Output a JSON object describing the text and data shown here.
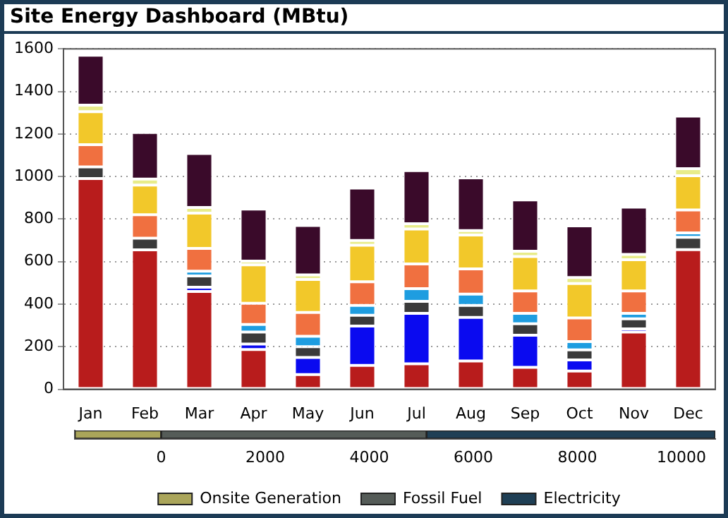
{
  "chart_data": [
    {
      "type": "bar",
      "title": "Site Energy Dashboard (MBtu)",
      "stacked": true,
      "grid": "y",
      "legend": false,
      "categories": [
        "Jan",
        "Feb",
        "Mar",
        "Apr",
        "May",
        "Jun",
        "Jul",
        "Aug",
        "Sep",
        "Oct",
        "Nov",
        "Dec"
      ],
      "ylim": [
        0,
        1600
      ],
      "yticks": [
        0,
        200,
        400,
        600,
        800,
        1000,
        1200,
        1400,
        1600
      ],
      "series": [
        {
          "color": "#b81c1c",
          "values": [
            990,
            655,
            460,
            187,
            69,
            112,
            120,
            133,
            103,
            86,
            269,
            656
          ]
        },
        {
          "color": "#0a0af0",
          "values": [
            0,
            0,
            20,
            26,
            81,
            185,
            237,
            205,
            151,
            52,
            15,
            0
          ]
        },
        {
          "color": "#3a3a3a",
          "values": [
            55,
            55,
            53,
            56,
            50,
            51,
            56,
            56,
            54,
            47,
            47,
            58
          ]
        },
        {
          "color": "#1e9de0",
          "values": [
            0,
            0,
            22,
            36,
            49,
            46,
            60,
            53,
            49,
            39,
            26,
            21
          ]
        },
        {
          "color": "#f07040",
          "values": [
            105,
            110,
            107,
            99,
            112,
            111,
            116,
            119,
            105,
            111,
            105,
            108
          ]
        },
        {
          "color": "#f2c82a",
          "values": [
            155,
            140,
            166,
            181,
            155,
            172,
            164,
            159,
            162,
            162,
            147,
            161
          ]
        },
        {
          "color": "#e8ec8a",
          "values": [
            30,
            28,
            26,
            17,
            22,
            22,
            25,
            21,
            25,
            28,
            25,
            33
          ]
        },
        {
          "color": "#3a0a2a",
          "values": [
            235,
            219,
            254,
            245,
            232,
            247,
            250,
            248,
            241,
            243,
            222,
            247
          ]
        }
      ]
    },
    {
      "type": "bar",
      "orientation": "horizontal",
      "stacked": true,
      "grid": false,
      "legend": "bottom",
      "tick_labels": "x",
      "categories": [
        null
      ],
      "xlim": [
        -1660,
        10650
      ],
      "xticks": [
        0,
        2000,
        4000,
        6000,
        8000,
        10000
      ],
      "series": [
        {
          "name": "Onsite Generation",
          "color": "#aaa55a",
          "values": [
            -1660
          ]
        },
        {
          "name": "Fossil Fuel",
          "color": "#555c58",
          "values": [
            5100
          ]
        },
        {
          "name": "Electricity",
          "color": "#1f3f55",
          "values": [
            5550
          ]
        }
      ]
    }
  ]
}
